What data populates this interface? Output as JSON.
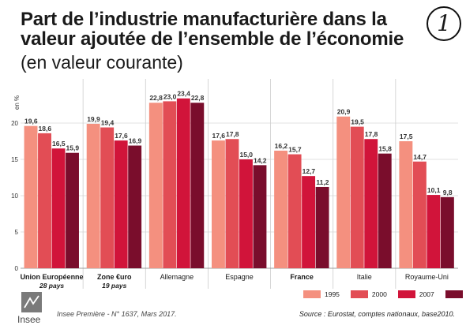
{
  "header": {
    "title": "Part de l’industrie manufacturière dans la valeur ajoutée de l’ensemble de l’économie",
    "subtitle": "(en valeur courante)",
    "badge": "1"
  },
  "chart_data": {
    "type": "bar",
    "ylabel": "en %",
    "ylim": [
      0,
      25
    ],
    "yticks": [
      0,
      5,
      10,
      15,
      20
    ],
    "grid": true,
    "legend_position": "bottom-right",
    "categories": [
      {
        "label": "Union Européenne",
        "sublabel": "28 pays",
        "bold": true
      },
      {
        "label": "Zone €uro",
        "sublabel": "19 pays",
        "bold": true
      },
      {
        "label": "Allemagne",
        "sublabel": "",
        "bold": false
      },
      {
        "label": "Espagne",
        "sublabel": "",
        "bold": false
      },
      {
        "label": "France",
        "sublabel": "",
        "bold": true
      },
      {
        "label": "Italie",
        "sublabel": "",
        "bold": false
      },
      {
        "label": "Royaume-Uni",
        "sublabel": "",
        "bold": false
      }
    ],
    "series": [
      {
        "name": "1995",
        "color": "#f4907f",
        "values": [
          19.6,
          19.9,
          22.8,
          17.6,
          16.2,
          20.9,
          17.5
        ],
        "labels": [
          "19,6",
          "19,9",
          "22,8",
          "17,6",
          "16,2",
          "20,9",
          "17,5"
        ]
      },
      {
        "name": "2000",
        "color": "#e24d55",
        "values": [
          18.6,
          19.4,
          23.0,
          17.8,
          15.7,
          19.5,
          14.7
        ],
        "labels": [
          "18,6",
          "19,4",
          "23,0",
          "17,8",
          "15,7",
          "19,5",
          "14,7"
        ]
      },
      {
        "name": "2007",
        "color": "#d1143a",
        "values": [
          16.5,
          17.6,
          23.4,
          15.0,
          12.7,
          17.8,
          10.1
        ],
        "labels": [
          "16,5",
          "17,6",
          "23,4",
          "15,0",
          "12,7",
          "17,8",
          "10,1"
        ]
      },
      {
        "name": "2015",
        "color": "#7a0d2c",
        "values": [
          15.9,
          16.9,
          22.8,
          14.2,
          11.2,
          15.8,
          9.8
        ],
        "labels": [
          "15,9",
          "16,9",
          "22,8",
          "14,2",
          "11,2",
          "15,8",
          "9,8"
        ]
      }
    ]
  },
  "footer": {
    "logo_text": "Insee",
    "publication": "Insee Première - N° 1637, Mars 2017.",
    "source": "Source : Eurostat, comptes nationaux, base2010."
  }
}
